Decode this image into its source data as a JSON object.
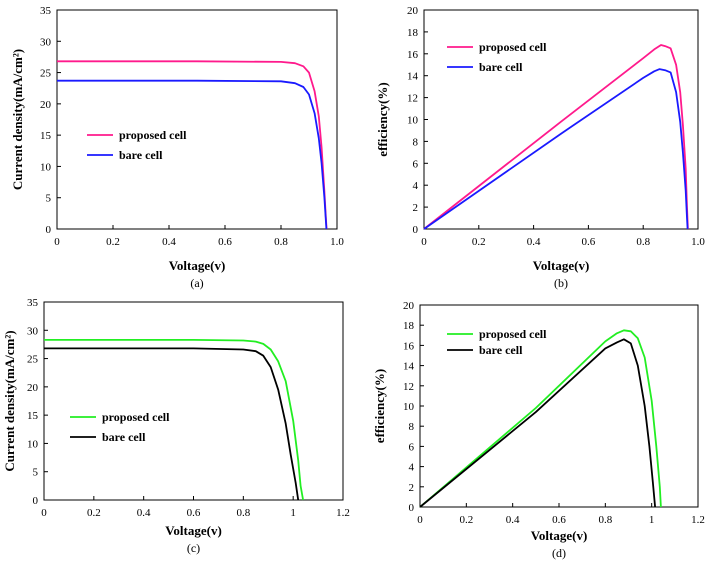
{
  "colors": {
    "pink": "#ff1a8c",
    "blue": "#1a1aff",
    "green": "#22ee22",
    "black": "#000000",
    "axis": "#000000"
  },
  "chart_data": [
    {
      "type": "line",
      "caption": "(a)",
      "xlabel": "Voltage(v)",
      "ylabel": "Current density(mA/cm²)",
      "xlim": [
        0,
        1.0
      ],
      "ylim": [
        0,
        35
      ],
      "xticks": [
        0,
        0.2,
        0.4,
        0.6,
        0.8,
        1.0
      ],
      "xtick_labels": [
        "0",
        "0.2",
        "0.4",
        "0.6",
        "0.8",
        "1.0"
      ],
      "yticks": [
        0,
        5,
        10,
        15,
        20,
        25,
        30,
        35
      ],
      "ytick_labels": [
        "0",
        "5",
        "10",
        "15",
        "20",
        "25",
        "30",
        "35"
      ],
      "legend_location": "center-left",
      "series": [
        {
          "name": "proposed cell",
          "color": "#ff1a8c",
          "x": [
            0,
            0.5,
            0.8,
            0.85,
            0.88,
            0.9,
            0.92,
            0.935,
            0.945,
            0.955,
            0.96,
            0.963
          ],
          "y": [
            26.8,
            26.8,
            26.7,
            26.5,
            26.0,
            25.0,
            22.0,
            18.0,
            13.0,
            6.0,
            2.0,
            0
          ]
        },
        {
          "name": "bare cell",
          "color": "#1a1aff",
          "x": [
            0,
            0.5,
            0.8,
            0.85,
            0.88,
            0.9,
            0.92,
            0.935,
            0.945,
            0.955,
            0.96,
            0.962
          ],
          "y": [
            23.7,
            23.7,
            23.6,
            23.3,
            22.7,
            21.5,
            18.5,
            14.5,
            10.5,
            5.0,
            1.5,
            0
          ]
        }
      ]
    },
    {
      "type": "line",
      "caption": "(b)",
      "xlabel": "Voltage(v)",
      "ylabel": "efficiency(%)",
      "xlim": [
        0,
        1.0
      ],
      "ylim": [
        0,
        20
      ],
      "xticks": [
        0,
        0.2,
        0.4,
        0.6,
        0.8,
        1.0
      ],
      "xtick_labels": [
        "0",
        "0.2",
        "0.4",
        "0.6",
        "0.8",
        "1.0"
      ],
      "yticks": [
        0,
        2,
        4,
        6,
        8,
        10,
        12,
        14,
        16,
        18,
        20
      ],
      "ytick_labels": [
        "0",
        "2",
        "4",
        "6",
        "8",
        "10",
        "12",
        "14",
        "16",
        "18",
        "20"
      ],
      "legend_location": "top-left",
      "series": [
        {
          "name": "proposed cell",
          "color": "#ff1a8c",
          "x": [
            0,
            0.5,
            0.8,
            0.84,
            0.865,
            0.88,
            0.9,
            0.92,
            0.935,
            0.945,
            0.955,
            0.96,
            0.963
          ],
          "y": [
            0,
            9.8,
            15.6,
            16.4,
            16.8,
            16.7,
            16.5,
            15.0,
            12.5,
            9.5,
            5.5,
            2.0,
            0
          ]
        },
        {
          "name": "bare cell",
          "color": "#1a1aff",
          "x": [
            0,
            0.5,
            0.8,
            0.84,
            0.86,
            0.88,
            0.9,
            0.92,
            0.935,
            0.945,
            0.955,
            0.96,
            0.962
          ],
          "y": [
            0,
            8.7,
            13.8,
            14.4,
            14.6,
            14.5,
            14.3,
            12.5,
            9.8,
            7.0,
            3.5,
            1.0,
            0
          ]
        }
      ]
    },
    {
      "type": "line",
      "caption": "(c)",
      "xlabel": "Voltage(v)",
      "ylabel": "Current density(mA/cm²)",
      "xlim": [
        0,
        1.2
      ],
      "ylim": [
        0,
        35
      ],
      "xticks": [
        0,
        0.2,
        0.4,
        0.6,
        0.8,
        1.0,
        1.2
      ],
      "xtick_labels": [
        "0",
        "0.2",
        "0.4",
        "0.6",
        "0.8",
        "1",
        "1.2"
      ],
      "yticks": [
        0,
        5,
        10,
        15,
        20,
        25,
        30,
        35
      ],
      "ytick_labels": [
        "0",
        "5",
        "10",
        "15",
        "20",
        "25",
        "30",
        "35"
      ],
      "legend_location": "center-left",
      "series": [
        {
          "name": "proposed cell",
          "color": "#22ee22",
          "x": [
            0,
            0.6,
            0.8,
            0.85,
            0.88,
            0.91,
            0.94,
            0.97,
            1.0,
            1.02,
            1.03,
            1.04
          ],
          "y": [
            28.3,
            28.3,
            28.2,
            28.0,
            27.6,
            26.6,
            24.5,
            21.0,
            14.0,
            7.0,
            2.5,
            0
          ]
        },
        {
          "name": "bare cell",
          "color": "#000000",
          "x": [
            0,
            0.6,
            0.8,
            0.85,
            0.88,
            0.91,
            0.94,
            0.97,
            0.99,
            1.01,
            1.02
          ],
          "y": [
            26.8,
            26.8,
            26.6,
            26.3,
            25.5,
            23.5,
            19.5,
            13.5,
            8.0,
            3.0,
            0
          ]
        }
      ]
    },
    {
      "type": "line",
      "caption": "(d)",
      "xlabel": "Voltage(v)",
      "ylabel": "efficiency(%)",
      "xlim": [
        0,
        1.2
      ],
      "ylim": [
        0,
        20
      ],
      "xticks": [
        0,
        0.2,
        0.4,
        0.6,
        0.8,
        1.0,
        1.2
      ],
      "xtick_labels": [
        "0",
        "0.2",
        "0.4",
        "0.6",
        "0.8",
        "1",
        "1.2"
      ],
      "yticks": [
        0,
        2,
        4,
        6,
        8,
        10,
        12,
        14,
        16,
        18,
        20
      ],
      "ytick_labels": [
        "0",
        "2",
        "4",
        "6",
        "8",
        "10",
        "12",
        "14",
        "16",
        "18",
        "20"
      ],
      "legend_location": "top-left",
      "series": [
        {
          "name": "proposed cell",
          "color": "#22ee22",
          "x": [
            0,
            0.5,
            0.8,
            0.85,
            0.88,
            0.91,
            0.94,
            0.97,
            1.0,
            1.02,
            1.035,
            1.04
          ],
          "y": [
            0,
            9.8,
            16.4,
            17.2,
            17.5,
            17.4,
            16.7,
            14.8,
            10.5,
            6.0,
            2.0,
            0
          ]
        },
        {
          "name": "bare cell",
          "color": "#000000",
          "x": [
            0,
            0.5,
            0.8,
            0.85,
            0.88,
            0.91,
            0.94,
            0.97,
            0.99,
            1.005,
            1.015
          ],
          "y": [
            0,
            9.4,
            15.7,
            16.3,
            16.6,
            16.2,
            14.0,
            10.0,
            6.0,
            2.5,
            0
          ]
        }
      ]
    }
  ]
}
